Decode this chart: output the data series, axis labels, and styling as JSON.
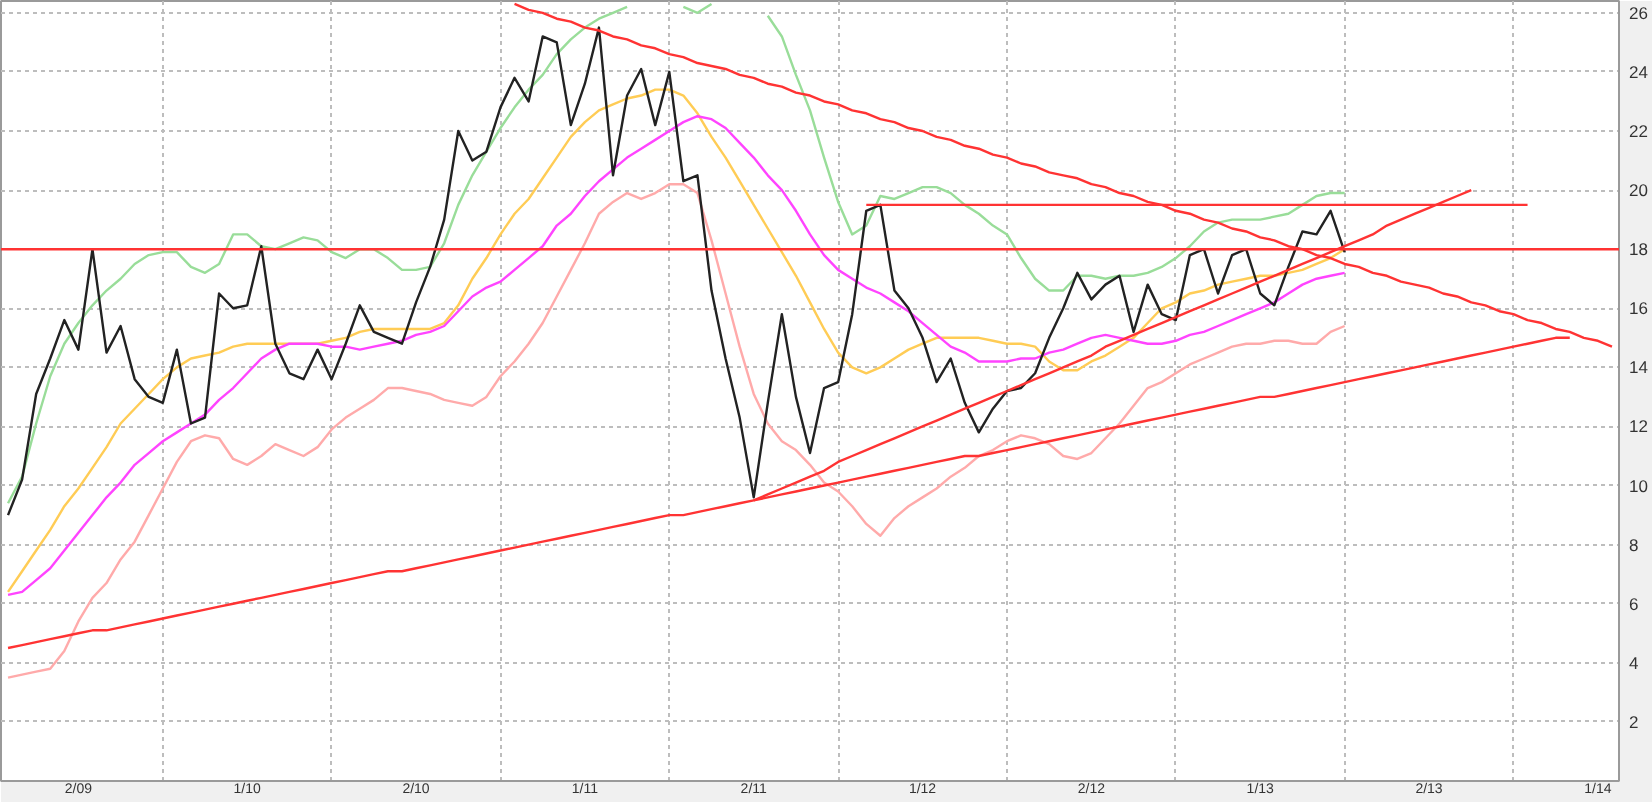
{
  "chart_data": {
    "type": "line",
    "ylim": [
      0,
      26.4
    ],
    "yticks": [
      2,
      4,
      6,
      8,
      10,
      12,
      14,
      16,
      18,
      20,
      22,
      24,
      26
    ],
    "grid": true,
    "categories": [
      null,
      null,
      null,
      null,
      null,
      "2/09",
      null,
      null,
      null,
      null,
      null,
      null,
      null,
      null,
      null,
      null,
      null,
      "1/10",
      null,
      null,
      null,
      null,
      null,
      null,
      null,
      null,
      null,
      null,
      null,
      "2/10",
      null,
      null,
      null,
      null,
      null,
      null,
      null,
      null,
      null,
      null,
      null,
      "1/11",
      null,
      null,
      null,
      null,
      null,
      null,
      null,
      null,
      null,
      null,
      null,
      "2/11",
      null,
      null,
      null,
      null,
      null,
      null,
      null,
      null,
      null,
      null,
      null,
      "1/12",
      null,
      null,
      null,
      null,
      null,
      null,
      null,
      null,
      null,
      null,
      null,
      "2/12",
      null,
      null,
      null,
      null,
      null,
      null,
      null,
      null,
      null,
      null,
      null,
      "1/13",
      null,
      null,
      null,
      null,
      null,
      null,
      null,
      null,
      null,
      null,
      null,
      "2/13",
      null,
      null,
      null,
      null,
      null,
      null,
      null,
      null,
      null,
      null,
      null,
      "1/14",
      null
    ],
    "series": [
      {
        "color": "#99dd99",
        "values": [
          9.4,
          10.3,
          12.1,
          13.7,
          14.8,
          15.5,
          16.1,
          16.6,
          17.0,
          17.5,
          17.8,
          17.9,
          17.9,
          17.4,
          17.2,
          17.5,
          18.5,
          18.5,
          18.1,
          18.0,
          18.2,
          18.4,
          18.3,
          17.9,
          17.7,
          18.0,
          18.0,
          17.7,
          17.3,
          17.3,
          17.4,
          18.2,
          19.5,
          20.5,
          21.3,
          22.1,
          22.8,
          23.4,
          23.9,
          24.6,
          25.1,
          25.5,
          25.8,
          26.0,
          26.2,
          null,
          null,
          null,
          26.2,
          26.0,
          26.3,
          null,
          null,
          null,
          25.9,
          25.2,
          23.9,
          22.7,
          21.1,
          19.6,
          18.5,
          18.8,
          19.8,
          19.7,
          19.9,
          20.1,
          20.1,
          19.9,
          19.5,
          19.2,
          18.8,
          18.5,
          17.7,
          17.0,
          16.6,
          16.6,
          17.1,
          17.1,
          17.0,
          17.1,
          17.1,
          17.2,
          17.4,
          17.7,
          18.1,
          18.6,
          18.9,
          19.0,
          19.0,
          19.0,
          19.1,
          19.2,
          19.5,
          19.8,
          19.9,
          19.9,
          null,
          null,
          null,
          null,
          null,
          null,
          null,
          null,
          null,
          null,
          null,
          null,
          null,
          null,
          null,
          null,
          null,
          null,
          null
        ]
      },
      {
        "color": "#ffaaaa",
        "values": [
          3.5,
          3.6,
          3.7,
          3.8,
          4.4,
          5.4,
          6.2,
          6.7,
          7.5,
          8.1,
          9.0,
          9.9,
          10.8,
          11.5,
          11.7,
          11.6,
          10.9,
          10.7,
          11.0,
          11.4,
          11.2,
          11.0,
          11.3,
          11.9,
          12.3,
          12.6,
          12.9,
          13.3,
          13.3,
          13.2,
          13.1,
          12.9,
          12.8,
          12.7,
          13.0,
          13.7,
          14.2,
          14.8,
          15.5,
          16.4,
          17.3,
          18.2,
          19.2,
          19.6,
          19.9,
          19.7,
          19.9,
          20.2,
          20.2,
          19.9,
          18.3,
          16.5,
          14.7,
          13.1,
          12.1,
          11.5,
          11.2,
          10.7,
          10.1,
          9.8,
          9.3,
          8.7,
          8.3,
          8.9,
          9.3,
          9.6,
          9.9,
          10.3,
          10.6,
          11.0,
          11.2,
          11.5,
          11.7,
          11.6,
          11.4,
          11.0,
          10.9,
          11.1,
          11.6,
          12.1,
          12.7,
          13.3,
          13.5,
          13.8,
          14.1,
          14.3,
          14.5,
          14.7,
          14.8,
          14.8,
          14.9,
          14.9,
          14.8,
          14.8,
          15.2,
          15.4,
          null,
          null,
          null,
          null,
          null,
          null,
          null,
          null,
          null,
          null,
          null,
          null,
          null,
          null,
          null,
          null,
          null,
          null,
          null
        ]
      },
      {
        "color": "#ffcc55",
        "values": [
          6.4,
          7.1,
          7.8,
          8.5,
          9.3,
          9.9,
          10.6,
          11.3,
          12.1,
          12.6,
          13.1,
          13.6,
          14.0,
          14.3,
          14.4,
          14.5,
          14.7,
          14.8,
          14.8,
          14.8,
          14.8,
          14.8,
          14.8,
          14.9,
          15.0,
          15.2,
          15.3,
          15.3,
          15.3,
          15.3,
          15.3,
          15.5,
          16.1,
          17.0,
          17.7,
          18.5,
          19.2,
          19.7,
          20.4,
          21.1,
          21.8,
          22.3,
          22.7,
          22.9,
          23.1,
          23.2,
          23.4,
          23.4,
          23.2,
          22.6,
          21.8,
          21.1,
          20.3,
          19.5,
          18.7,
          17.9,
          17.1,
          16.2,
          15.3,
          14.5,
          14.0,
          13.8,
          14.0,
          14.3,
          14.6,
          14.8,
          15.0,
          15.0,
          15.0,
          15.0,
          14.9,
          14.8,
          14.8,
          14.7,
          14.2,
          13.9,
          13.9,
          14.2,
          14.4,
          14.7,
          15.0,
          15.5,
          16.0,
          16.2,
          16.5,
          16.6,
          16.8,
          16.9,
          17.0,
          17.1,
          17.1,
          17.2,
          17.3,
          17.5,
          17.7,
          18.0,
          null,
          null,
          null,
          null,
          null,
          null,
          null,
          null,
          null,
          null,
          null,
          null,
          null,
          null,
          null,
          null,
          null,
          null,
          null
        ]
      },
      {
        "color": "#ff44ff",
        "values": [
          6.3,
          6.4,
          6.8,
          7.2,
          7.8,
          8.4,
          9.0,
          9.6,
          10.1,
          10.7,
          11.1,
          11.5,
          11.8,
          12.1,
          12.4,
          12.9,
          13.3,
          13.8,
          14.3,
          14.6,
          14.8,
          14.8,
          14.8,
          14.7,
          14.7,
          14.6,
          14.7,
          14.8,
          14.9,
          15.1,
          15.2,
          15.4,
          15.9,
          16.4,
          16.7,
          16.9,
          17.3,
          17.7,
          18.1,
          18.8,
          19.2,
          19.8,
          20.3,
          20.7,
          21.1,
          21.4,
          21.7,
          22.0,
          22.3,
          22.5,
          22.4,
          22.1,
          21.6,
          21.1,
          20.5,
          20.0,
          19.3,
          18.5,
          17.8,
          17.3,
          17.0,
          16.7,
          16.5,
          16.2,
          15.9,
          15.5,
          15.1,
          14.7,
          14.5,
          14.2,
          14.2,
          14.2,
          14.3,
          14.3,
          14.5,
          14.6,
          14.8,
          15.0,
          15.1,
          15.0,
          14.9,
          14.8,
          14.8,
          14.9,
          15.1,
          15.2,
          15.4,
          15.6,
          15.8,
          16.0,
          16.2,
          16.5,
          16.8,
          17.0,
          17.1,
          17.2,
          null,
          null,
          null,
          null,
          null,
          null,
          null,
          null,
          null,
          null,
          null,
          null,
          null,
          null,
          null,
          null,
          null,
          null,
          null
        ]
      },
      {
        "color": "#222222",
        "values": [
          9.0,
          10.2,
          13.1,
          14.3,
          15.6,
          14.6,
          18.0,
          14.5,
          15.4,
          13.6,
          13.0,
          12.8,
          14.6,
          12.1,
          12.3,
          16.5,
          16.0,
          16.1,
          18.1,
          14.8,
          13.8,
          13.6,
          14.6,
          13.6,
          14.8,
          16.1,
          15.2,
          15.0,
          14.8,
          16.2,
          17.4,
          19.0,
          22.0,
          21.0,
          21.3,
          22.8,
          23.8,
          23.0,
          25.2,
          25.0,
          22.2,
          23.6,
          25.5,
          20.5,
          23.2,
          24.1,
          22.2,
          24.0,
          20.3,
          20.5,
          16.6,
          14.3,
          12.3,
          9.6,
          12.8,
          15.8,
          13.0,
          11.1,
          13.3,
          13.5,
          15.8,
          19.3,
          19.5,
          16.6,
          16.0,
          15.0,
          13.5,
          14.3,
          12.8,
          11.8,
          12.6,
          13.2,
          13.3,
          13.8,
          15.0,
          16.0,
          17.2,
          16.3,
          16.8,
          17.1,
          15.2,
          16.8,
          15.8,
          15.6,
          17.8,
          18.0,
          16.5,
          17.8,
          18.0,
          16.5,
          16.1,
          17.4,
          18.6,
          18.5,
          19.3,
          17.9,
          null,
          null,
          null,
          null,
          null,
          null,
          null,
          null,
          null,
          null,
          null,
          null,
          null,
          null,
          null,
          null,
          null,
          null,
          null
        ]
      },
      {
        "color": "#ff3333",
        "values": [
          null,
          null,
          null,
          null,
          null,
          null,
          null,
          null,
          null,
          null,
          null,
          null,
          null,
          null,
          null,
          null,
          null,
          null,
          null,
          null,
          null,
          null,
          null,
          null,
          null,
          null,
          null,
          null,
          null,
          null,
          null,
          null,
          null,
          null,
          null,
          null,
          26.3,
          26.1,
          26.0,
          25.8,
          25.7,
          25.5,
          25.4,
          25.2,
          25.1,
          24.9,
          24.8,
          24.6,
          24.5,
          24.3,
          24.2,
          24.1,
          23.9,
          23.8,
          23.6,
          23.5,
          23.3,
          23.2,
          23.0,
          22.9,
          22.7,
          22.6,
          22.4,
          22.3,
          22.1,
          22.0,
          21.8,
          21.7,
          21.5,
          21.4,
          21.2,
          21.1,
          20.9,
          20.8,
          20.6,
          20.5,
          20.4,
          20.2,
          20.1,
          19.9,
          19.8,
          19.6,
          19.5,
          19.3,
          19.2,
          19.0,
          18.9,
          18.7,
          18.6,
          18.4,
          18.3,
          18.1,
          18.0,
          17.8,
          17.7,
          17.5,
          17.4,
          17.2,
          17.1,
          16.9,
          16.8,
          16.7,
          16.5,
          16.4,
          16.2,
          16.1,
          15.9,
          15.8,
          15.6,
          15.5,
          15.3,
          15.2,
          15.0,
          14.9,
          14.7
        ]
      },
      {
        "color": "#ff3333",
        "values": [
          4.5,
          4.6,
          4.7,
          4.8,
          4.9,
          5.0,
          5.1,
          5.1,
          5.2,
          5.3,
          5.4,
          5.5,
          5.6,
          5.7,
          5.8,
          5.9,
          6.0,
          6.1,
          6.2,
          6.3,
          6.4,
          6.5,
          6.6,
          6.7,
          6.8,
          6.9,
          7.0,
          7.1,
          7.1,
          7.2,
          7.3,
          7.4,
          7.5,
          7.6,
          7.7,
          7.8,
          7.9,
          8.0,
          8.1,
          8.2,
          8.3,
          8.4,
          8.5,
          8.6,
          8.7,
          8.8,
          8.9,
          9.0,
          9.0,
          9.1,
          9.2,
          9.3,
          9.4,
          9.5,
          9.6,
          9.7,
          9.8,
          9.9,
          10.0,
          10.1,
          10.2,
          10.3,
          10.4,
          10.5,
          10.6,
          10.7,
          10.8,
          10.9,
          11.0,
          11.0,
          11.1,
          11.2,
          11.3,
          11.4,
          11.5,
          11.6,
          11.7,
          11.8,
          11.9,
          12.0,
          12.1,
          12.2,
          12.3,
          12.4,
          12.5,
          12.6,
          12.7,
          12.8,
          12.9,
          13.0,
          13.0,
          13.1,
          13.2,
          13.3,
          13.4,
          13.5,
          13.6,
          13.7,
          13.8,
          13.9,
          14.0,
          14.1,
          14.2,
          14.3,
          14.4,
          14.5,
          14.6,
          14.7,
          14.8,
          14.9,
          15.0,
          15.0,
          null,
          null,
          null
        ]
      },
      {
        "color": "#ff3333",
        "values": [
          null,
          null,
          null,
          null,
          null,
          null,
          null,
          null,
          null,
          null,
          null,
          null,
          null,
          null,
          null,
          null,
          null,
          null,
          null,
          null,
          null,
          null,
          null,
          null,
          null,
          null,
          null,
          null,
          null,
          null,
          null,
          null,
          null,
          null,
          null,
          null,
          null,
          null,
          null,
          null,
          null,
          null,
          null,
          null,
          null,
          null,
          null,
          null,
          null,
          null,
          null,
          null,
          null,
          9.5,
          9.7,
          9.9,
          10.1,
          10.3,
          10.5,
          10.8,
          11.0,
          11.2,
          11.4,
          11.6,
          11.8,
          12.0,
          12.2,
          12.4,
          12.6,
          12.8,
          13.0,
          13.2,
          13.4,
          13.6,
          13.8,
          14.0,
          14.2,
          14.4,
          14.7,
          14.9,
          15.1,
          15.3,
          15.5,
          15.7,
          15.9,
          16.1,
          16.3,
          16.5,
          16.7,
          16.9,
          17.1,
          17.3,
          17.5,
          17.7,
          17.9,
          18.1,
          18.3,
          18.5,
          18.8,
          19.0,
          19.2,
          19.4,
          19.6,
          19.8,
          20.0,
          null,
          null,
          null,
          null,
          null,
          null,
          null,
          null,
          null,
          null
        ]
      },
      {
        "color": "#ff3333",
        "values": [
          null,
          null,
          null,
          null,
          null,
          null,
          null,
          null,
          null,
          null,
          null,
          null,
          null,
          null,
          null,
          null,
          null,
          null,
          null,
          null,
          null,
          null,
          null,
          null,
          null,
          null,
          null,
          null,
          null,
          null,
          null,
          null,
          null,
          null,
          null,
          null,
          null,
          null,
          null,
          null,
          null,
          null,
          null,
          null,
          null,
          null,
          null,
          null,
          null,
          null,
          null,
          null,
          null,
          null,
          null,
          null,
          null,
          null,
          null,
          null,
          null,
          19.5,
          19.5,
          19.5,
          19.5,
          19.5,
          19.5,
          19.5,
          19.5,
          19.5,
          19.5,
          19.5,
          19.5,
          19.5,
          19.5,
          19.5,
          19.5,
          19.5,
          19.5,
          19.5,
          19.5,
          19.5,
          19.5,
          19.5,
          19.5,
          19.5,
          19.5,
          19.5,
          19.5,
          19.5,
          19.5,
          19.5,
          19.5,
          19.5,
          19.5,
          19.5,
          19.5,
          19.5,
          19.5,
          19.5,
          19.5,
          19.5,
          19.5,
          19.5,
          19.5,
          19.5,
          19.5,
          19.5,
          19.5,
          null,
          null,
          null,
          null,
          null,
          null
        ]
      }
    ],
    "ref_lines": [
      {
        "axis": "y",
        "value": 18,
        "color": "#ff3333"
      }
    ]
  }
}
